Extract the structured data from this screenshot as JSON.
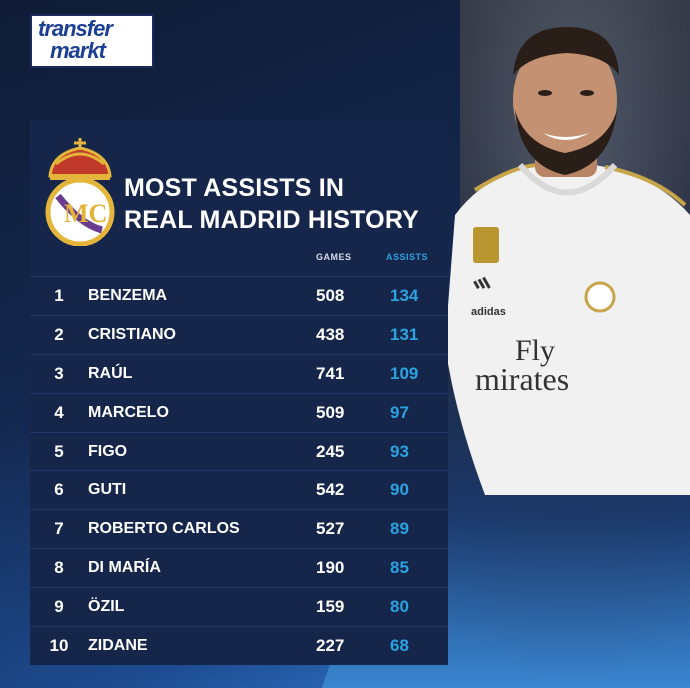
{
  "brand": {
    "line1": "transfer",
    "line2": "markt"
  },
  "title": {
    "line1": "MOST ASSISTS IN",
    "line2": "REAL MADRID HISTORY"
  },
  "columns": {
    "games": "GAMES",
    "assists": "ASSISTS"
  },
  "rows": [
    {
      "rank": "1",
      "name": "BENZEMA",
      "games": "508",
      "assists": "134"
    },
    {
      "rank": "2",
      "name": "CRISTIANO",
      "games": "438",
      "assists": "131"
    },
    {
      "rank": "3",
      "name": "RAÚL",
      "games": "741",
      "assists": "109"
    },
    {
      "rank": "4",
      "name": "MARCELO",
      "games": "509",
      "assists": "97"
    },
    {
      "rank": "5",
      "name": "FIGO",
      "games": "245",
      "assists": "93"
    },
    {
      "rank": "6",
      "name": "GUTI",
      "games": "542",
      "assists": "90"
    },
    {
      "rank": "7",
      "name": "ROBERTO CARLOS",
      "games": "527",
      "assists": "89"
    },
    {
      "rank": "8",
      "name": "DI MARÍA",
      "games": "190",
      "assists": "85"
    },
    {
      "rank": "9",
      "name": "ÖZIL",
      "games": "159",
      "assists": "80"
    },
    {
      "rank": "10",
      "name": "ZIDANE",
      "games": "227",
      "assists": "68"
    }
  ],
  "shirt": {
    "sponsor_line1": "Fly",
    "sponsor_line2": "mirates",
    "kit_brand": "adidas"
  },
  "colors": {
    "panel": "#15264a",
    "accent": "#2aa3e0",
    "background_top": "#0e1a33",
    "background_bottom": "#3e8ed8",
    "crest_gold": "#e5b53b"
  }
}
